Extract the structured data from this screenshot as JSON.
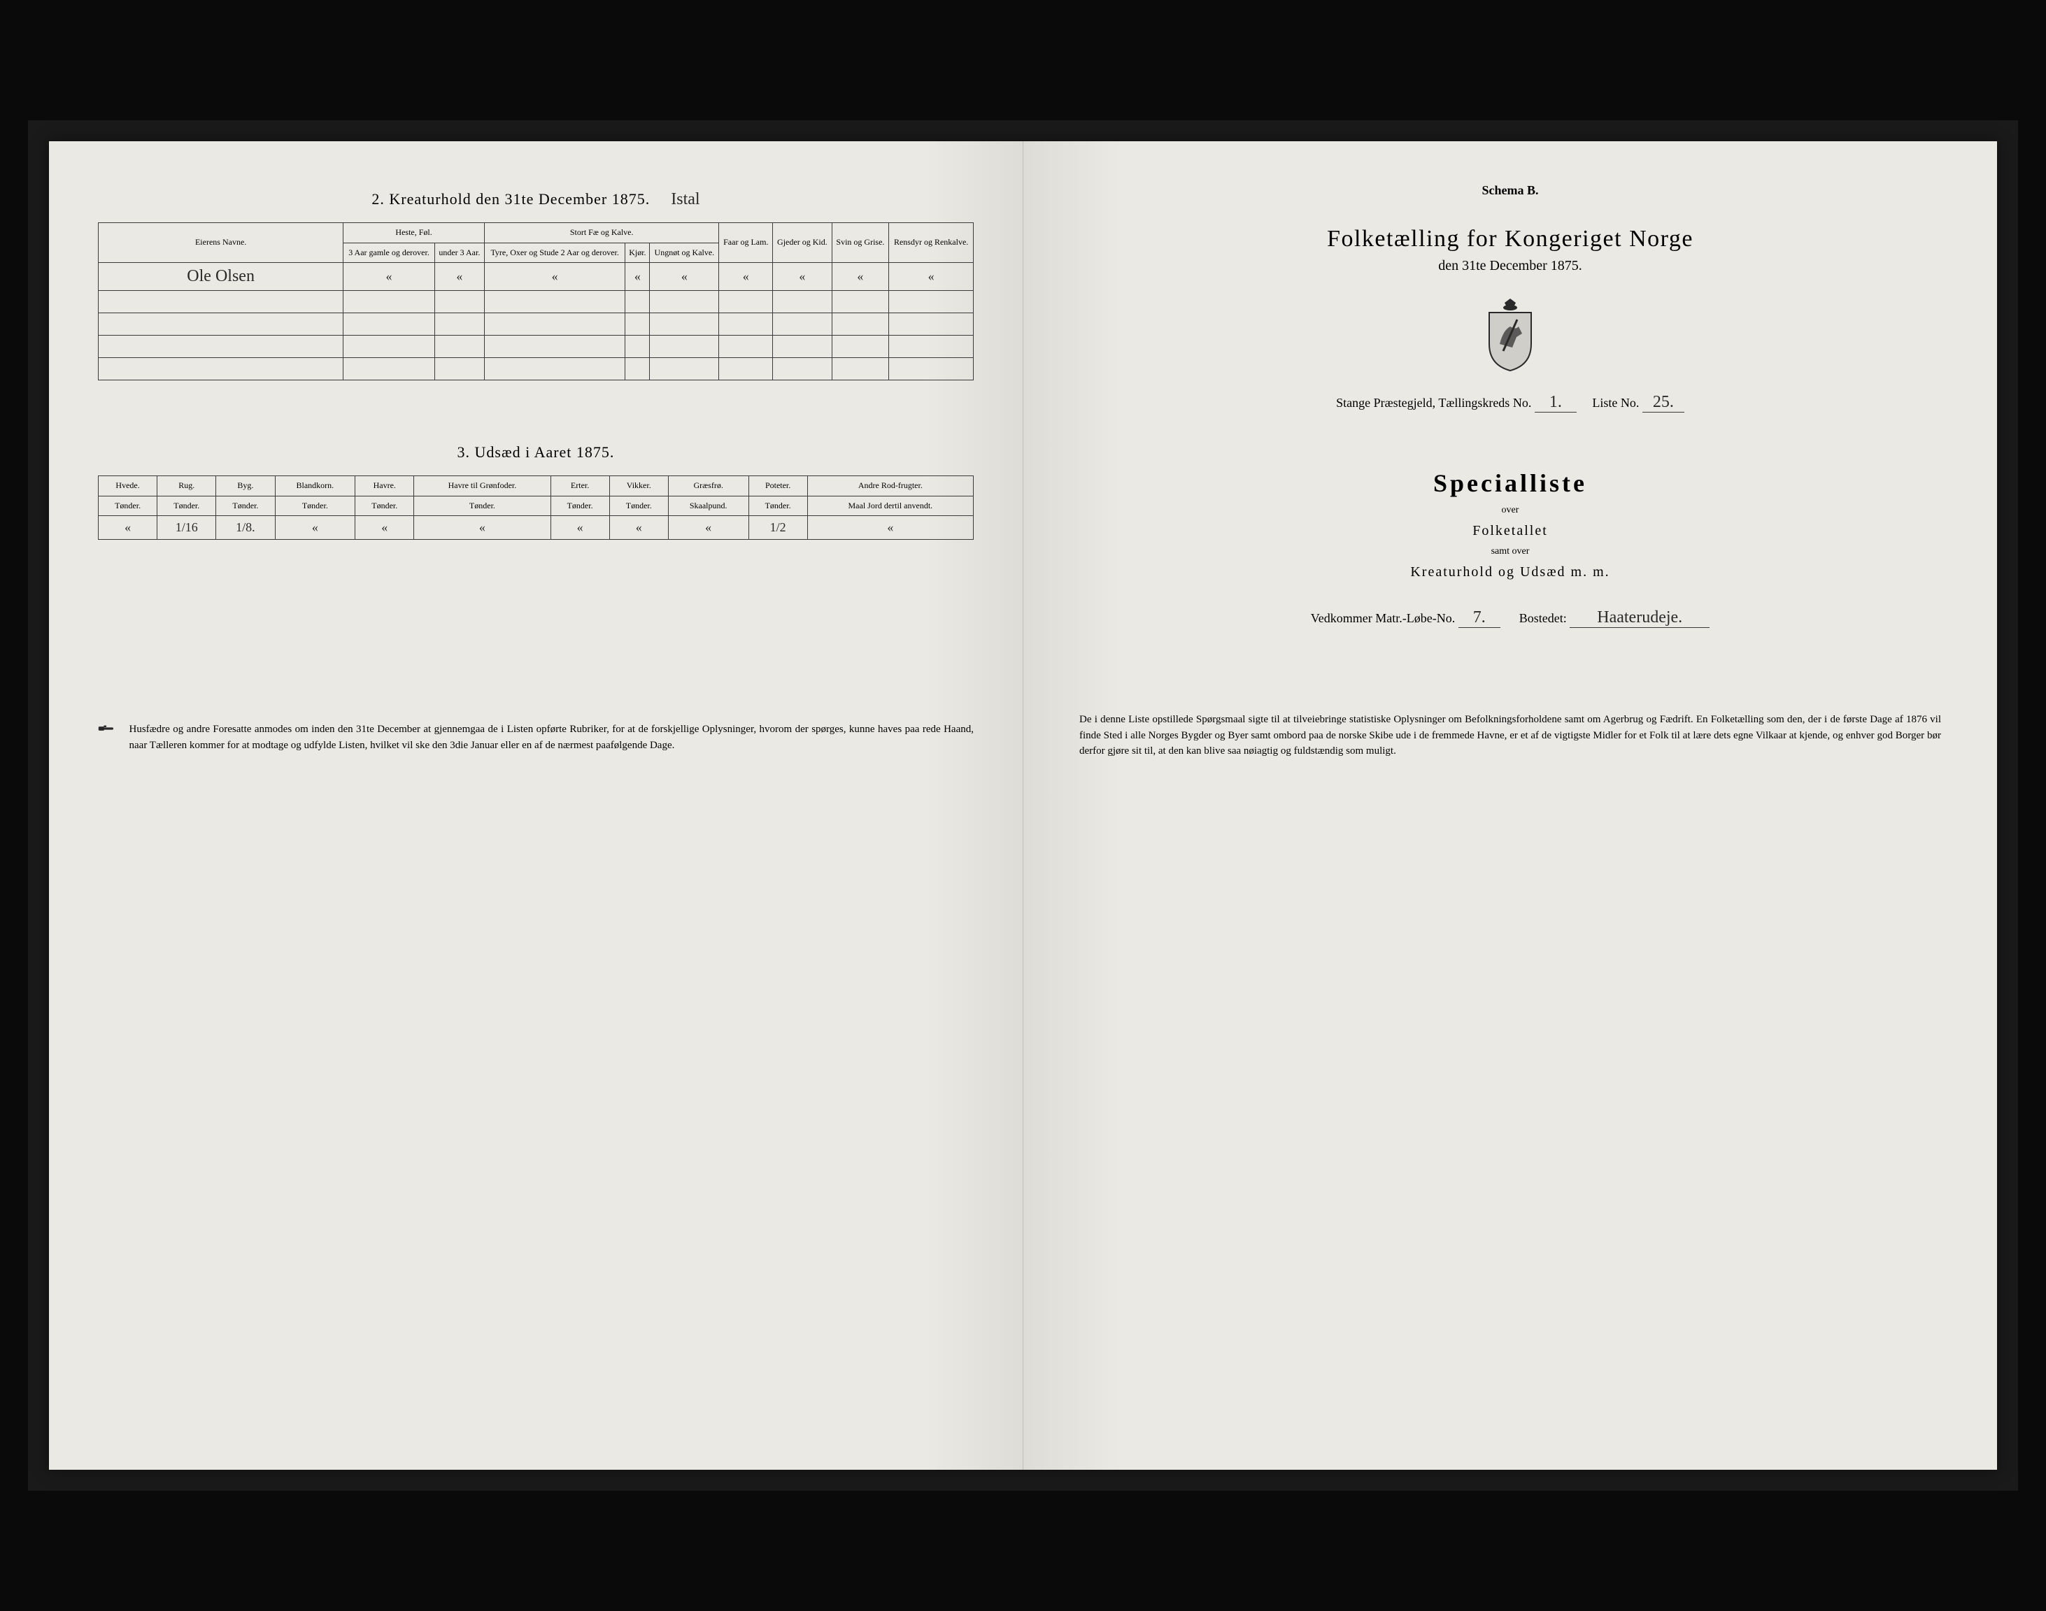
{
  "left": {
    "section2": {
      "title": "2.  Kreaturhold den 31te December 1875.",
      "title_note_handwritten": "Istal",
      "columns": {
        "owner": "Eierens Navne.",
        "group_heste": "Heste, Føl.",
        "group_storfe": "Stort Fæ og Kalve.",
        "faar": "Faar og Lam.",
        "gjeder": "Gjeder og Kid.",
        "svin": "Svin og Grise.",
        "rensdyr": "Rensdyr og Renkalve.",
        "heste_a": "3 Aar gamle og derover.",
        "heste_b": "under 3 Aar.",
        "storfe_a": "Tyre, Oxer og Stude 2 Aar og derover.",
        "storfe_b": "Kjør.",
        "storfe_c": "Ungnøt og Kalve."
      },
      "rows": [
        {
          "owner": "Ole Olsen",
          "heste_a": "«",
          "heste_b": "«",
          "storfe_a": "«",
          "storfe_b": "«",
          "storfe_c": "«",
          "faar": "«",
          "gjeder": "«",
          "svin": "«",
          "rensdyr": "«"
        },
        {
          "owner": "",
          "heste_a": "",
          "heste_b": "",
          "storfe_a": "",
          "storfe_b": "",
          "storfe_c": "",
          "faar": "",
          "gjeder": "",
          "svin": "",
          "rensdyr": ""
        },
        {
          "owner": "",
          "heste_a": "",
          "heste_b": "",
          "storfe_a": "",
          "storfe_b": "",
          "storfe_c": "",
          "faar": "",
          "gjeder": "",
          "svin": "",
          "rensdyr": ""
        },
        {
          "owner": "",
          "heste_a": "",
          "heste_b": "",
          "storfe_a": "",
          "storfe_b": "",
          "storfe_c": "",
          "faar": "",
          "gjeder": "",
          "svin": "",
          "rensdyr": ""
        },
        {
          "owner": "",
          "heste_a": "",
          "heste_b": "",
          "storfe_a": "",
          "storfe_b": "",
          "storfe_c": "",
          "faar": "",
          "gjeder": "",
          "svin": "",
          "rensdyr": ""
        }
      ]
    },
    "section3": {
      "title": "3.  Udsæd i Aaret 1875.",
      "columns": [
        {
          "h": "Hvede.",
          "u": "Tønder."
        },
        {
          "h": "Rug.",
          "u": "Tønder."
        },
        {
          "h": "Byg.",
          "u": "Tønder."
        },
        {
          "h": "Blandkorn.",
          "u": "Tønder."
        },
        {
          "h": "Havre.",
          "u": "Tønder."
        },
        {
          "h": "Havre til Grønfoder.",
          "u": "Tønder."
        },
        {
          "h": "Erter.",
          "u": "Tønder."
        },
        {
          "h": "Vikker.",
          "u": "Tønder."
        },
        {
          "h": "Græsfrø.",
          "u": "Skaalpund."
        },
        {
          "h": "Poteter.",
          "u": "Tønder."
        },
        {
          "h": "Andre Rod-frugter.",
          "u": "Maal Jord dertil anvendt."
        }
      ],
      "row": [
        "«",
        "1/16",
        "1/8.",
        "«",
        "«",
        "«",
        "«",
        "«",
        "«",
        "1/2",
        "«"
      ]
    },
    "footnote": "Husfædre og andre Foresatte anmodes om inden den 31te December at gjennemgaa de i Listen opførte Rubriker, for at de forskjellige Oplysninger, hvorom der spørges, kunne haves paa rede Haand, naar Tælleren kommer for at modtage og udfylde Listen, hvilket vil ske den 3die Januar eller en af de nærmest paafølgende Dage."
  },
  "right": {
    "schema": "Schema B.",
    "title": "Folketælling for Kongeriget Norge",
    "subtitle": "den 31te December 1875.",
    "district_prefix": "Stange Præstegjeld, Tællingskreds No.",
    "district_no": "1.",
    "liste_label": "Liste No.",
    "liste_no": "25.",
    "specialliste": "Specialliste",
    "over1": "over",
    "folketallet": "Folketallet",
    "samt_over": "samt over",
    "kreatur": "Kreaturhold og Udsæd m. m.",
    "vedkommer_label": "Vedkommer Matr.-Løbe-No.",
    "matr_no": "7.",
    "bostedet_label": "Bostedet:",
    "bostedet": "Haaterudeje.",
    "footnote": "De i denne Liste opstillede Spørgsmaal sigte til at tilveiebringe statistiske Oplysninger om Befolkningsforholdene samt om Agerbrug og Fædrift.  En Folketælling som den, der i de første Dage af 1876 vil finde Sted i alle Norges Bygder og Byer samt ombord paa de norske Skibe ude i de fremmede Havne, er et af de vigtigste Midler for et Folk til at lære dets egne Vilkaar at kjende, og enhver god Borger bør derfor gjøre sit til, at den kan blive saa nøiagtig og fuldstændig som muligt."
  },
  "colors": {
    "paper": "#e8e6e0",
    "ink": "#2a2a2a",
    "frame": "#0a0a0a"
  }
}
